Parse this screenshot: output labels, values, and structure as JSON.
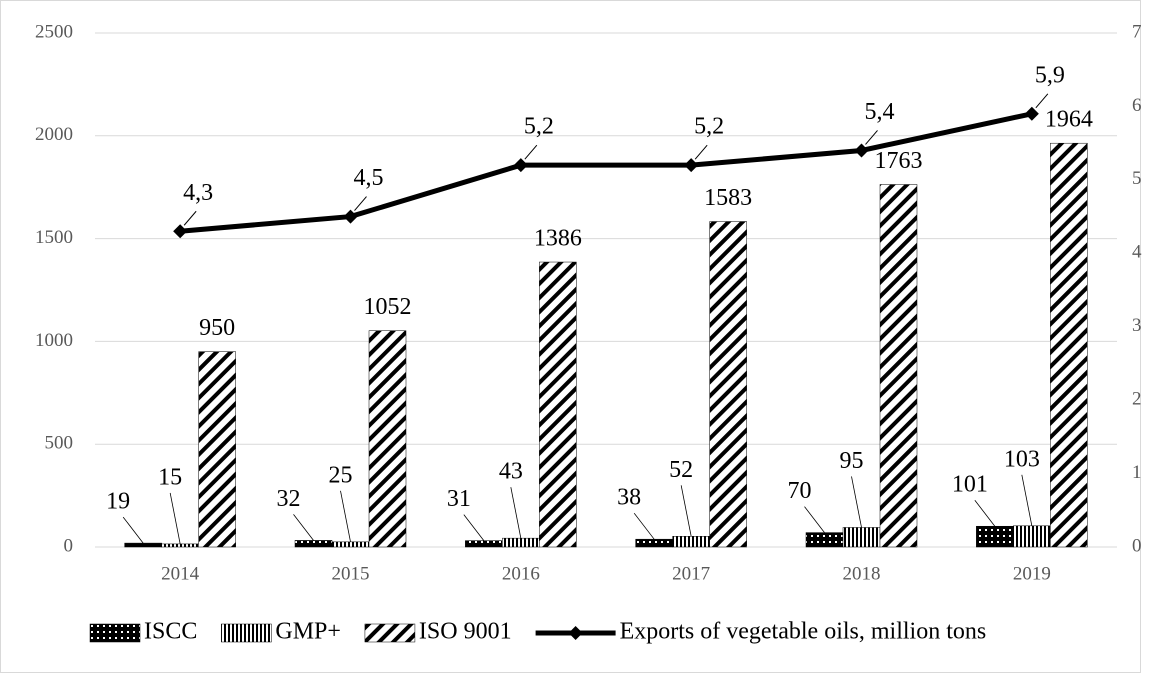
{
  "chart_data": {
    "type": "bar",
    "categories": [
      "2014",
      "2015",
      "2016",
      "2017",
      "2018",
      "2019"
    ],
    "series": [
      {
        "name": "ISCC",
        "color": "#000000",
        "pattern": "dots",
        "values": [
          19,
          32,
          31,
          38,
          70,
          101
        ]
      },
      {
        "name": "GMP+",
        "color": "#000000",
        "pattern": "vertical",
        "values": [
          15,
          25,
          43,
          52,
          95,
          103
        ]
      },
      {
        "name": "ISO 9001",
        "color": "#000000",
        "pattern": "diagonal",
        "values": [
          950,
          1052,
          1386,
          1583,
          1763,
          1964
        ]
      },
      {
        "name": "Exports of vegetable oils, million tons",
        "color": "#000000",
        "type": "line",
        "axis": "y2",
        "values": [
          4.3,
          4.5,
          5.2,
          5.2,
          5.4,
          5.9
        ],
        "value_labels": [
          "4,3",
          "4,5",
          "5,2",
          "5,2",
          "5,4",
          "5,9"
        ]
      }
    ],
    "ylim": [
      0,
      2500
    ],
    "yticks": [
      0,
      500,
      1000,
      1500,
      2000,
      2500
    ],
    "y2lim": [
      0,
      7
    ],
    "y2ticks": [
      0,
      1,
      2,
      3,
      4,
      5,
      6,
      7
    ],
    "grid": true,
    "legend": "bottom"
  }
}
